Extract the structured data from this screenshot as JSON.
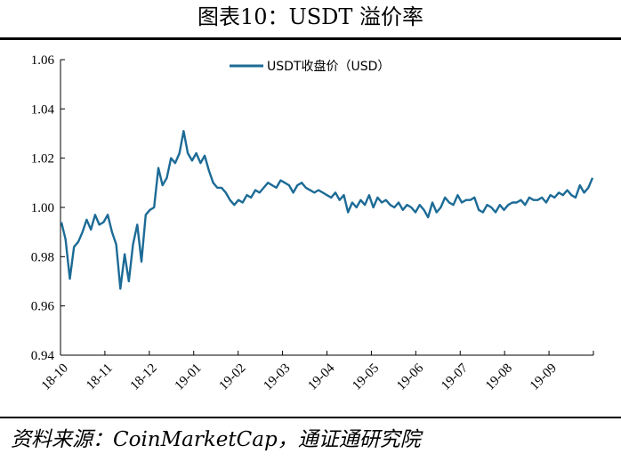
{
  "header": {
    "title": "图表10：USDT 溢价率"
  },
  "footer": {
    "source": "资料来源：CoinMarketCap，通证通研究院"
  },
  "chart_data": {
    "type": "line",
    "title": "图表10：USDT 溢价率",
    "xlabel": "",
    "ylabel": "",
    "ylim": [
      0.94,
      1.06
    ],
    "yticks": [
      0.94,
      0.96,
      0.98,
      1.0,
      1.02,
      1.04,
      1.06
    ],
    "ytick_labels": [
      "0.94",
      "0.96",
      "0.98",
      "1.00",
      "1.02",
      "1.04",
      "1.06"
    ],
    "xtick_labels": [
      "18-10",
      "18-11",
      "18-12",
      "19-01",
      "19-02",
      "19-03",
      "19-04",
      "19-05",
      "19-06",
      "19-07",
      "19-08",
      "19-09"
    ],
    "grid": false,
    "legend_position": "top-center",
    "colors": {
      "series": "#1c6b96",
      "axis": "#000000"
    },
    "series": [
      {
        "name": "USDT收盘价（USD）",
        "x_start": "2018-10-01",
        "x_step_days": 2,
        "values": [
          0.994,
          0.987,
          0.971,
          0.984,
          0.986,
          0.99,
          0.995,
          0.991,
          0.997,
          0.993,
          0.994,
          0.997,
          0.99,
          0.985,
          0.967,
          0.981,
          0.97,
          0.985,
          0.993,
          0.978,
          0.997,
          0.999,
          1.0,
          1.016,
          1.009,
          1.012,
          1.02,
          1.018,
          1.022,
          1.031,
          1.022,
          1.019,
          1.022,
          1.018,
          1.021,
          1.015,
          1.01,
          1.008,
          1.008,
          1.006,
          1.003,
          1.001,
          1.003,
          1.002,
          1.005,
          1.004,
          1.007,
          1.006,
          1.008,
          1.01,
          1.009,
          1.008,
          1.011,
          1.01,
          1.009,
          1.006,
          1.009,
          1.01,
          1.008,
          1.007,
          1.006,
          1.007,
          1.006,
          1.005,
          1.004,
          1.006,
          1.003,
          1.005,
          0.998,
          1.002,
          1.0,
          1.003,
          1.001,
          1.005,
          1.0,
          1.004,
          1.002,
          1.003,
          1.001,
          1.0,
          1.002,
          0.999,
          1.001,
          1.0,
          0.998,
          1.001,
          0.999,
          0.996,
          1.002,
          0.998,
          1.0,
          1.004,
          1.002,
          1.001,
          1.005,
          1.002,
          1.003,
          1.003,
          1.004,
          0.999,
          0.998,
          1.001,
          1.0,
          0.998,
          1.001,
          0.999,
          1.001,
          1.002,
          1.002,
          1.003,
          1.001,
          1.004,
          1.003,
          1.003,
          1.004,
          1.002,
          1.005,
          1.004,
          1.006,
          1.005,
          1.007,
          1.005,
          1.004,
          1.009,
          1.006,
          1.008,
          1.012
        ]
      }
    ]
  }
}
